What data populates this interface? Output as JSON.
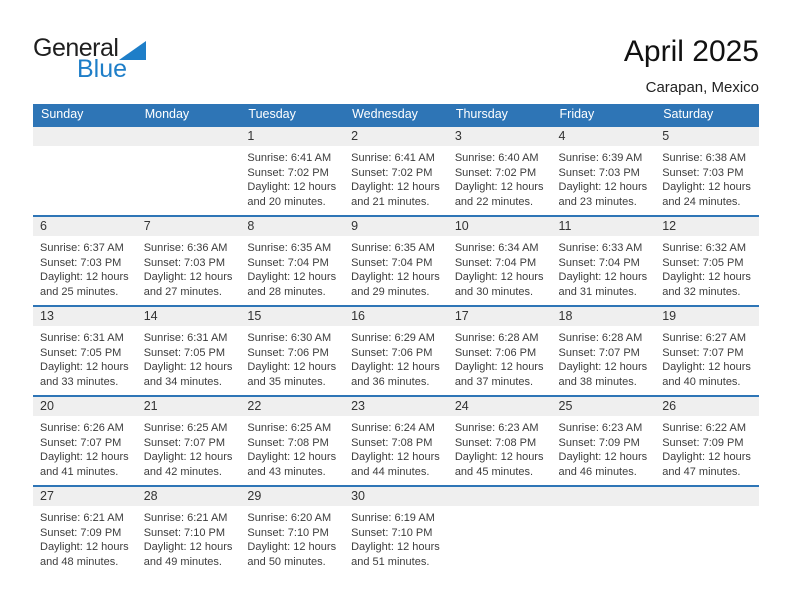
{
  "logo": {
    "word1": "General",
    "word2": "Blue",
    "triangle_color": "#1e7ec8"
  },
  "title": "April 2025",
  "subtitle": "Carapan, Mexico",
  "weekday_headers": [
    "Sunday",
    "Monday",
    "Tuesday",
    "Wednesday",
    "Thursday",
    "Friday",
    "Saturday"
  ],
  "colors": {
    "header_bar_blue": "#2e75b6",
    "week_divider_blue": "#2e75b6",
    "day_number_band_gray": "#efefef",
    "logo_blue": "#1e7ec8"
  },
  "weeks": [
    [
      null,
      null,
      {
        "day": "1",
        "sunrise": "Sunrise: 6:41 AM",
        "sunset": "Sunset: 7:02 PM",
        "daylight1": "Daylight: 12 hours",
        "daylight2": "and 20 minutes."
      },
      {
        "day": "2",
        "sunrise": "Sunrise: 6:41 AM",
        "sunset": "Sunset: 7:02 PM",
        "daylight1": "Daylight: 12 hours",
        "daylight2": "and 21 minutes."
      },
      {
        "day": "3",
        "sunrise": "Sunrise: 6:40 AM",
        "sunset": "Sunset: 7:02 PM",
        "daylight1": "Daylight: 12 hours",
        "daylight2": "and 22 minutes."
      },
      {
        "day": "4",
        "sunrise": "Sunrise: 6:39 AM",
        "sunset": "Sunset: 7:03 PM",
        "daylight1": "Daylight: 12 hours",
        "daylight2": "and 23 minutes."
      },
      {
        "day": "5",
        "sunrise": "Sunrise: 6:38 AM",
        "sunset": "Sunset: 7:03 PM",
        "daylight1": "Daylight: 12 hours",
        "daylight2": "and 24 minutes."
      }
    ],
    [
      {
        "day": "6",
        "sunrise": "Sunrise: 6:37 AM",
        "sunset": "Sunset: 7:03 PM",
        "daylight1": "Daylight: 12 hours",
        "daylight2": "and 25 minutes."
      },
      {
        "day": "7",
        "sunrise": "Sunrise: 6:36 AM",
        "sunset": "Sunset: 7:03 PM",
        "daylight1": "Daylight: 12 hours",
        "daylight2": "and 27 minutes."
      },
      {
        "day": "8",
        "sunrise": "Sunrise: 6:35 AM",
        "sunset": "Sunset: 7:04 PM",
        "daylight1": "Daylight: 12 hours",
        "daylight2": "and 28 minutes."
      },
      {
        "day": "9",
        "sunrise": "Sunrise: 6:35 AM",
        "sunset": "Sunset: 7:04 PM",
        "daylight1": "Daylight: 12 hours",
        "daylight2": "and 29 minutes."
      },
      {
        "day": "10",
        "sunrise": "Sunrise: 6:34 AM",
        "sunset": "Sunset: 7:04 PM",
        "daylight1": "Daylight: 12 hours",
        "daylight2": "and 30 minutes."
      },
      {
        "day": "11",
        "sunrise": "Sunrise: 6:33 AM",
        "sunset": "Sunset: 7:04 PM",
        "daylight1": "Daylight: 12 hours",
        "daylight2": "and 31 minutes."
      },
      {
        "day": "12",
        "sunrise": "Sunrise: 6:32 AM",
        "sunset": "Sunset: 7:05 PM",
        "daylight1": "Daylight: 12 hours",
        "daylight2": "and 32 minutes."
      }
    ],
    [
      {
        "day": "13",
        "sunrise": "Sunrise: 6:31 AM",
        "sunset": "Sunset: 7:05 PM",
        "daylight1": "Daylight: 12 hours",
        "daylight2": "and 33 minutes."
      },
      {
        "day": "14",
        "sunrise": "Sunrise: 6:31 AM",
        "sunset": "Sunset: 7:05 PM",
        "daylight1": "Daylight: 12 hours",
        "daylight2": "and 34 minutes."
      },
      {
        "day": "15",
        "sunrise": "Sunrise: 6:30 AM",
        "sunset": "Sunset: 7:06 PM",
        "daylight1": "Daylight: 12 hours",
        "daylight2": "and 35 minutes."
      },
      {
        "day": "16",
        "sunrise": "Sunrise: 6:29 AM",
        "sunset": "Sunset: 7:06 PM",
        "daylight1": "Daylight: 12 hours",
        "daylight2": "and 36 minutes."
      },
      {
        "day": "17",
        "sunrise": "Sunrise: 6:28 AM",
        "sunset": "Sunset: 7:06 PM",
        "daylight1": "Daylight: 12 hours",
        "daylight2": "and 37 minutes."
      },
      {
        "day": "18",
        "sunrise": "Sunrise: 6:28 AM",
        "sunset": "Sunset: 7:07 PM",
        "daylight1": "Daylight: 12 hours",
        "daylight2": "and 38 minutes."
      },
      {
        "day": "19",
        "sunrise": "Sunrise: 6:27 AM",
        "sunset": "Sunset: 7:07 PM",
        "daylight1": "Daylight: 12 hours",
        "daylight2": "and 40 minutes."
      }
    ],
    [
      {
        "day": "20",
        "sunrise": "Sunrise: 6:26 AM",
        "sunset": "Sunset: 7:07 PM",
        "daylight1": "Daylight: 12 hours",
        "daylight2": "and 41 minutes."
      },
      {
        "day": "21",
        "sunrise": "Sunrise: 6:25 AM",
        "sunset": "Sunset: 7:07 PM",
        "daylight1": "Daylight: 12 hours",
        "daylight2": "and 42 minutes."
      },
      {
        "day": "22",
        "sunrise": "Sunrise: 6:25 AM",
        "sunset": "Sunset: 7:08 PM",
        "daylight1": "Daylight: 12 hours",
        "daylight2": "and 43 minutes."
      },
      {
        "day": "23",
        "sunrise": "Sunrise: 6:24 AM",
        "sunset": "Sunset: 7:08 PM",
        "daylight1": "Daylight: 12 hours",
        "daylight2": "and 44 minutes."
      },
      {
        "day": "24",
        "sunrise": "Sunrise: 6:23 AM",
        "sunset": "Sunset: 7:08 PM",
        "daylight1": "Daylight: 12 hours",
        "daylight2": "and 45 minutes."
      },
      {
        "day": "25",
        "sunrise": "Sunrise: 6:23 AM",
        "sunset": "Sunset: 7:09 PM",
        "daylight1": "Daylight: 12 hours",
        "daylight2": "and 46 minutes."
      },
      {
        "day": "26",
        "sunrise": "Sunrise: 6:22 AM",
        "sunset": "Sunset: 7:09 PM",
        "daylight1": "Daylight: 12 hours",
        "daylight2": "and 47 minutes."
      }
    ],
    [
      {
        "day": "27",
        "sunrise": "Sunrise: 6:21 AM",
        "sunset": "Sunset: 7:09 PM",
        "daylight1": "Daylight: 12 hours",
        "daylight2": "and 48 minutes."
      },
      {
        "day": "28",
        "sunrise": "Sunrise: 6:21 AM",
        "sunset": "Sunset: 7:10 PM",
        "daylight1": "Daylight: 12 hours",
        "daylight2": "and 49 minutes."
      },
      {
        "day": "29",
        "sunrise": "Sunrise: 6:20 AM",
        "sunset": "Sunset: 7:10 PM",
        "daylight1": "Daylight: 12 hours",
        "daylight2": "and 50 minutes."
      },
      {
        "day": "30",
        "sunrise": "Sunrise: 6:19 AM",
        "sunset": "Sunset: 7:10 PM",
        "daylight1": "Daylight: 12 hours",
        "daylight2": "and 51 minutes."
      },
      null,
      null,
      null
    ]
  ]
}
